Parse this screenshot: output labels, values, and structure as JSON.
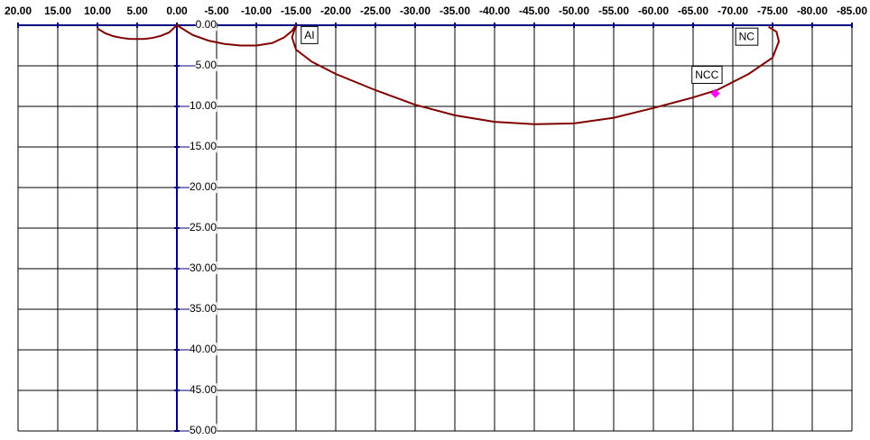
{
  "chart_data": {
    "type": "line",
    "xlim": [
      20,
      -85
    ],
    "ylim": [
      0,
      50
    ],
    "xticks": [
      {
        "value": 20,
        "label": "20.00"
      },
      {
        "value": 15,
        "label": "15.00"
      },
      {
        "value": 10,
        "label": "10.00"
      },
      {
        "value": 5,
        "label": "5.00"
      },
      {
        "value": 0,
        "label": "0.00"
      },
      {
        "value": -5,
        "label": "-5.00"
      },
      {
        "value": -10,
        "label": "-10.00"
      },
      {
        "value": -15,
        "label": "-15.00"
      },
      {
        "value": -20,
        "label": "-20.00"
      },
      {
        "value": -25,
        "label": "-25.00"
      },
      {
        "value": -30,
        "label": "-30.00"
      },
      {
        "value": -35,
        "label": "-35.00"
      },
      {
        "value": -40,
        "label": "-40.00"
      },
      {
        "value": -45,
        "label": "-45.00"
      },
      {
        "value": -50,
        "label": "-50.00"
      },
      {
        "value": -55,
        "label": "-55.00"
      },
      {
        "value": -60,
        "label": "-60.00"
      },
      {
        "value": -65,
        "label": "-65.00"
      },
      {
        "value": -70,
        "label": "-70.00"
      },
      {
        "value": -75,
        "label": "-75.00"
      },
      {
        "value": -80,
        "label": "-80.00"
      },
      {
        "value": -85,
        "label": "-85.00"
      }
    ],
    "yticks": [
      {
        "value": 0,
        "label": "0.00"
      },
      {
        "value": 5,
        "label": "5.00"
      },
      {
        "value": 10,
        "label": "10.00"
      },
      {
        "value": 15,
        "label": "15.00"
      },
      {
        "value": 20,
        "label": "20.00"
      },
      {
        "value": 25,
        "label": "25.00"
      },
      {
        "value": 30,
        "label": "30.00"
      },
      {
        "value": 35,
        "label": "35.00"
      },
      {
        "value": 40,
        "label": "40.00"
      },
      {
        "value": 45,
        "label": "45.00"
      },
      {
        "value": 50,
        "label": "50.00"
      }
    ],
    "grid": true,
    "grid_color": "#000000",
    "axis_color": "#000080",
    "series": [
      {
        "color": "#800000",
        "x": [
          10,
          9,
          8,
          7,
          6,
          5,
          4,
          3,
          2,
          1,
          0,
          -2,
          -4,
          -6,
          -8,
          -10,
          -12,
          -13.5,
          -14.5,
          -15,
          -14.5,
          -15,
          -17,
          -20,
          -25,
          -30,
          -35,
          -40,
          -45,
          -50,
          -55,
          -60,
          -65,
          -68,
          -72,
          -75,
          -75.8,
          -75.5,
          -74.5
        ],
        "y": [
          0.4,
          1.0,
          1.35,
          1.55,
          1.68,
          1.7,
          1.68,
          1.55,
          1.3,
          0.9,
          0,
          1.2,
          1.9,
          2.3,
          2.5,
          2.5,
          2.2,
          1.5,
          0.7,
          0,
          1.5,
          3,
          4.5,
          6,
          8,
          9.8,
          11.1,
          11.9,
          12.2,
          12.1,
          11.4,
          10.2,
          8.9,
          8,
          6,
          4,
          2,
          0.8,
          0.2
        ]
      }
    ],
    "markers": [
      {
        "x": -67.8,
        "y": 8.4,
        "color": "#ff00ff"
      }
    ],
    "annotations": [
      {
        "text": "AI",
        "x": -15.6,
        "y": 1.3
      },
      {
        "text": "NC",
        "x": -70.3,
        "y": 1.5
      },
      {
        "text": "NCC",
        "x": -64.8,
        "y": 6.2
      }
    ]
  }
}
